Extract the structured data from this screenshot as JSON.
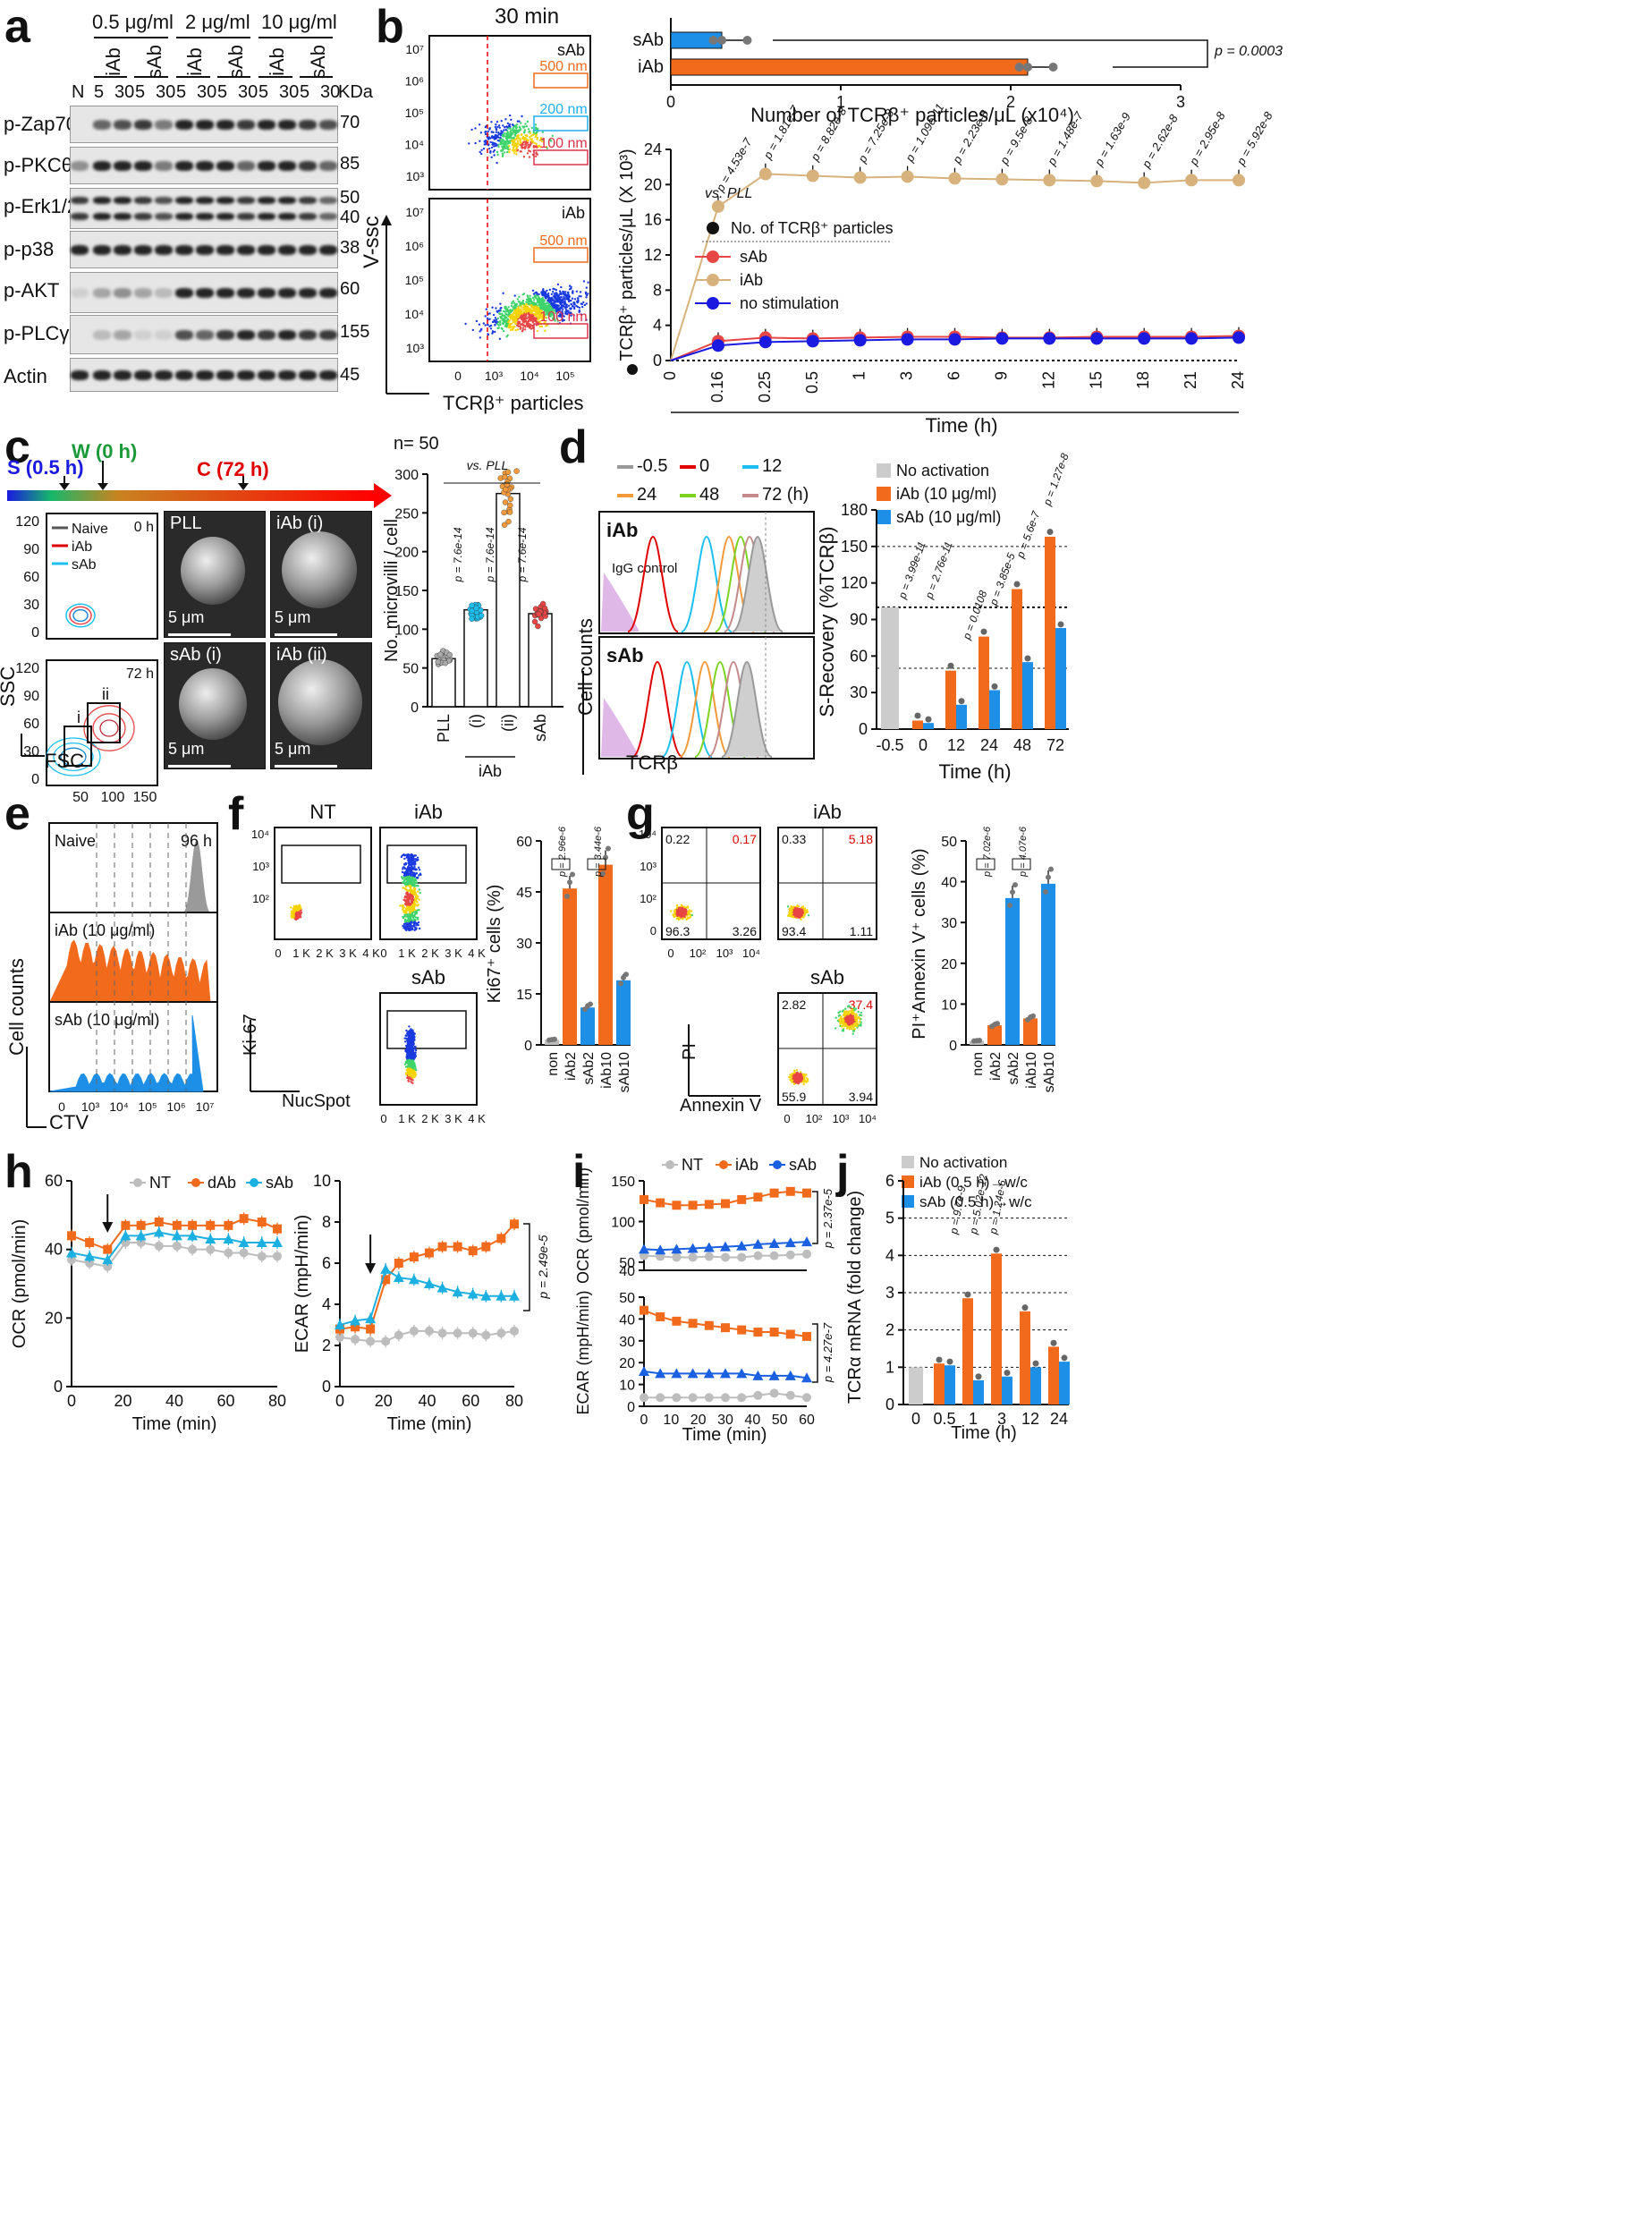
{
  "panel_labels": [
    "a",
    "b",
    "c",
    "d",
    "e",
    "f",
    "g",
    "h",
    "i",
    "j"
  ],
  "panel_a": {
    "concentrations": [
      "0.5 μg/ml",
      "2 μg/ml",
      "10 μg/ml"
    ],
    "groups": [
      "iAb",
      "sAb",
      "iAb",
      "sAb",
      "iAb",
      "sAb"
    ],
    "lane_labels": [
      "N",
      "5",
      "30",
      "5",
      "30",
      "5",
      "30",
      "5",
      "30",
      "5",
      "30",
      "5",
      "30"
    ],
    "kda_header": "KDa",
    "rows": [
      {
        "name": "p-Zap70",
        "kda": "70"
      },
      {
        "name": "p-PKCθ",
        "kda": "85"
      },
      {
        "name": "p-Erk1/2",
        "kda": "50",
        "kda2": "40"
      },
      {
        "name": "p-p38",
        "kda": "38"
      },
      {
        "name": "p-AKT",
        "kda": "60"
      },
      {
        "name": "p-PLCγ",
        "kda": "155"
      },
      {
        "name": "Actin",
        "kda": "45"
      }
    ]
  },
  "panel_b": {
    "title": "30 min",
    "plot1_label": "sAb",
    "plot2_label": "iAb",
    "gates": [
      "500 nm",
      "200 nm",
      "100 nm"
    ],
    "y_axis": "V-ssc",
    "x_axis": "TCRβ⁺ particles",
    "y_ticks": [
      "10⁷",
      "10⁶",
      "10⁵",
      "10⁴",
      "10³"
    ],
    "x_ticks": [
      "0",
      "10³",
      "10⁴",
      "10⁵"
    ],
    "bar_chart": {
      "categories": [
        "sAb",
        "iAb"
      ],
      "values": [
        0.3,
        2.1
      ],
      "xlabel": "Number of TCRβ⁺ particles/μL (x10⁴)",
      "x_ticks": [
        "0",
        "1",
        "2",
        "3"
      ],
      "pvalue": "p = 0.0003",
      "colors": [
        "#1e8fe6",
        "#f26b1d"
      ]
    },
    "line_chart": {
      "ylabel": "TCRβ⁺ particles/μL (X 10³)",
      "xlabel": "Time (h)",
      "x_ticks": [
        "0",
        "0.16",
        "0.25",
        "0.5",
        "1",
        "3",
        "6",
        "9",
        "12",
        "15",
        "18",
        "21",
        "24"
      ],
      "y_ticks": [
        "0",
        "4",
        "8",
        "12",
        "16",
        "20",
        "24"
      ],
      "vs_label": "vs. PLL",
      "legend_title": "No. of TCRβ⁺ particles",
      "legend": [
        "sAb",
        "iAb",
        "no stimulation"
      ],
      "pvalues": [
        "p = 4.53e-7",
        "p = 1.81e-7",
        "p = 8.82e-8",
        "p = 7.25e-8",
        "p = 1.09e-11",
        "p = 2.23e-8",
        "p = 9.5e-8",
        "p = 1.48e-7",
        "p = 1.63e-9",
        "p = 2.62e-8",
        "p = 2.95e-8",
        "p = 5.92e-8"
      ],
      "iab": [
        0,
        17.5,
        21.2,
        21,
        20.8,
        20.9,
        20.7,
        20.6,
        20.5,
        20.4,
        20.2,
        20.5,
        20.5
      ],
      "sab": [
        0,
        2.2,
        2.6,
        2.5,
        2.6,
        2.7,
        2.7,
        2.6,
        2.6,
        2.7,
        2.7,
        2.7,
        2.8
      ],
      "nostim": [
        0,
        1.7,
        2.1,
        2.2,
        2.3,
        2.4,
        2.4,
        2.5,
        2.5,
        2.5,
        2.5,
        2.5,
        2.6
      ]
    }
  },
  "panel_c": {
    "timeline": {
      "s": "S (0.5 h)",
      "w": "W (0 h)",
      "c": "C (72 h)"
    },
    "facs_top": {
      "legend": [
        "Naive",
        "iAb",
        "sAb"
      ],
      "time": "0 h"
    },
    "facs_bottom": {
      "time": "72 h",
      "gates": [
        "i",
        "ii"
      ]
    },
    "y_axis": "SSC",
    "x_axis": "FSC",
    "y_ticks": [
      "120",
      "90",
      "60",
      "30",
      "0"
    ],
    "x_ticks": [
      "50",
      "100",
      "150"
    ],
    "sem": [
      {
        "label": "PLL",
        "scale": "5 μm"
      },
      {
        "label": "iAb (i)",
        "scale": "5 μm"
      },
      {
        "label": "sAb (i)",
        "scale": "5 μm"
      },
      {
        "label": "iAb (ii)",
        "scale": "5 μm"
      }
    ],
    "chart": {
      "n": "n= 50",
      "vs": "vs. PLL",
      "ylabel": "No. microvilli / cell",
      "categories": [
        "PLL",
        "(i)",
        "(ii)",
        "sAb"
      ],
      "group_label": "iAb",
      "values": [
        62,
        125,
        275,
        120
      ],
      "y_ticks": [
        "0",
        "50",
        "100",
        "150",
        "200",
        "250",
        "300"
      ],
      "pvalues": [
        "p = 7.6e-14",
        "p = 7.6e-14",
        "p = 7.6e-14"
      ]
    }
  },
  "panel_d": {
    "legend_times": [
      "-0.5",
      "0",
      "12",
      "24",
      "48",
      "72 (h)"
    ],
    "legend_colors": [
      "#999999",
      "#e00000",
      "#1cc0f0",
      "#f39a3a",
      "#7ed321",
      "#c48a8a"
    ],
    "hist_labels": [
      "iAb",
      "sAb"
    ],
    "igg": "IgG control",
    "y_axis": "Cell counts",
    "x_axis": "TCRβ",
    "chart": {
      "legend": [
        "No activation",
        "iAb (10 μg/ml)",
        "sAb (10 μg/ml)"
      ],
      "ylabel": "S-Recovery (%TCRβ)",
      "xlabel": "Time (h)",
      "categories": [
        "-0.5",
        "0",
        "12",
        "24",
        "48",
        "72"
      ],
      "no_activation": [
        100,
        0,
        0,
        0,
        0,
        0
      ],
      "iab": [
        0,
        7,
        48,
        76,
        115,
        158
      ],
      "sab": [
        0,
        5,
        20,
        32,
        55,
        83
      ],
      "y_ticks": [
        "0",
        "30",
        "60",
        "90",
        "120",
        "150",
        "180"
      ],
      "pvalues": [
        "p = 3.99e-11",
        "p = 2.76e-11",
        "p = 0.0108",
        "p = 3.85e-5",
        "p = 5.6e-7",
        "p = 1.27e-8"
      ]
    }
  },
  "panel_e": {
    "labels": [
      "Naive",
      "iAb (10 μg/ml)",
      "sAb (10 μg/ml)"
    ],
    "time": "96 h",
    "y_axis": "Cell counts",
    "x_axis": "CTV",
    "x_ticks": [
      "0",
      "10³",
      "10⁴",
      "10⁵",
      "10⁶",
      "10⁷"
    ]
  },
  "panel_f": {
    "plots": [
      "NT",
      "iAb",
      "sAb"
    ],
    "y_axis": "Ki-67",
    "x_axis": "NucSpot",
    "x_ticks": [
      "0",
      "1 K",
      "2 K",
      "3 K",
      "4 K"
    ],
    "y_ticks": [
      "10⁴",
      "10³",
      "10²"
    ],
    "chart": {
      "ylabel": "Ki67⁺ cells (%)",
      "categories": [
        "non",
        "iAb2",
        "sAb2",
        "iAb10",
        "sAb10"
      ],
      "values": [
        1.5,
        46,
        11,
        53,
        19
      ],
      "y_ticks": [
        "0",
        "15",
        "30",
        "45",
        "60"
      ],
      "pvalues": [
        "p = 2.96e-6",
        "p = 3.44e-6"
      ]
    }
  },
  "panel_g": {
    "plots": [
      {
        "name": "",
        "q": [
          "0.22",
          "0.17",
          "96.3",
          "3.26"
        ]
      },
      {
        "name": "iAb",
        "q": [
          "0.33",
          "5.18",
          "93.4",
          "1.11"
        ]
      },
      {
        "name": "sAb",
        "q": [
          "2.82",
          "37.4",
          "55.9",
          "3.94"
        ]
      }
    ],
    "y_axis": "PI",
    "x_axis": "Annexin V",
    "x_ticks": [
      "0",
      "10²",
      "10³",
      "10⁴"
    ],
    "y_ticks": [
      "10⁴",
      "10³",
      "10²",
      "0"
    ],
    "chart": {
      "ylabel": "PI⁺Annexin V⁺ cells (%)",
      "categories": [
        "non",
        "iAb2",
        "sAb2",
        "iAb10",
        "sAb10"
      ],
      "values": [
        1,
        4.8,
        36,
        6.5,
        39.5
      ],
      "y_ticks": [
        "0",
        "10",
        "20",
        "30",
        "40",
        "50"
      ],
      "pvalues": [
        "p = 7.02e-6",
        "p = 4.07e-6"
      ]
    }
  },
  "panel_h": {
    "legend": [
      "NT",
      "dAb",
      "sAb"
    ],
    "ocr": {
      "ylabel": "OCR (pmol/min)",
      "xlabel": "Time (min)",
      "x": [
        0,
        7,
        14,
        21,
        27,
        34,
        41,
        47,
        54,
        61,
        67,
        74,
        80
      ],
      "nt": [
        37,
        36,
        35,
        42,
        42,
        41,
        41,
        40,
        40,
        39,
        39,
        38,
        38
      ],
      "dab": [
        44,
        42,
        40,
        47,
        47,
        48,
        47,
        47,
        47,
        47,
        49,
        48,
        46
      ],
      "sab": [
        39,
        38,
        37,
        44,
        44,
        45,
        44,
        44,
        43,
        43,
        42,
        42,
        42
      ],
      "y_ticks": [
        "0",
        "20",
        "40",
        "60"
      ],
      "x_ticks": [
        "0",
        "20",
        "40",
        "60",
        "80"
      ]
    },
    "ecar": {
      "ylabel": "ECAR (mpH/min)",
      "xlabel": "Time (min)",
      "x": [
        0,
        7,
        14,
        21,
        27,
        34,
        41,
        47,
        54,
        61,
        67,
        74,
        80
      ],
      "nt": [
        2.4,
        2.3,
        2.2,
        2.2,
        2.5,
        2.7,
        2.7,
        2.6,
        2.6,
        2.6,
        2.5,
        2.6,
        2.7
      ],
      "dab": [
        2.8,
        2.9,
        2.8,
        5.2,
        6.0,
        6.3,
        6.5,
        6.8,
        6.8,
        6.6,
        6.8,
        7.2,
        7.9
      ],
      "sab": [
        3.0,
        3.2,
        3.3,
        5.7,
        5.3,
        5.2,
        5.0,
        4.8,
        4.6,
        4.5,
        4.4,
        4.4,
        4.4
      ],
      "y_ticks": [
        "0",
        "2",
        "4",
        "6",
        "8",
        "10"
      ],
      "x_ticks": [
        "0",
        "20",
        "40",
        "60",
        "80"
      ],
      "pvalue": "p = 2.49e-5"
    }
  },
  "panel_i": {
    "legend": [
      "NT",
      "iAb",
      "sAb"
    ],
    "ocr": {
      "ylabel": "OCR (pmol/min)",
      "y_ticks": [
        "40",
        "50",
        "100",
        "150"
      ],
      "x": [
        0,
        6,
        12,
        18,
        24,
        30,
        36,
        42,
        48,
        54,
        60
      ],
      "nt": [
        58,
        57,
        56,
        56,
        57,
        56,
        56,
        58,
        58,
        59,
        60
      ],
      "iab": [
        127,
        123,
        120,
        120,
        121,
        122,
        127,
        130,
        135,
        137,
        135
      ],
      "sab": [
        66,
        65,
        66,
        67,
        68,
        69,
        70,
        72,
        73,
        74,
        75
      ],
      "pvalue": "p = 2.37e-5"
    },
    "ecar": {
      "ylabel": "ECAR (mpH/min)",
      "xlabel": "Time (min)",
      "y_ticks": [
        "0",
        "10",
        "20",
        "30",
        "40",
        "50"
      ],
      "x_ticks": [
        "0",
        "10",
        "20",
        "30",
        "40",
        "50",
        "60"
      ],
      "x": [
        0,
        6,
        12,
        18,
        24,
        30,
        36,
        42,
        48,
        54,
        60
      ],
      "nt": [
        4,
        4,
        4,
        4,
        4,
        4,
        4,
        5,
        6,
        5,
        4
      ],
      "iab": [
        44,
        41,
        39,
        38,
        37,
        36,
        35,
        34,
        34,
        33,
        32
      ],
      "sab": [
        16,
        15,
        15,
        15,
        15,
        15,
        15,
        14,
        14,
        14,
        13
      ],
      "pvalue": "p = 4.27e-7"
    }
  },
  "panel_j": {
    "legend": [
      "No activation",
      "iAb (0.5 h)→w/c",
      "sAb (0.5 h)→w/c"
    ],
    "ylabel": "TCRα mRNA (fold change)",
    "xlabel": "Time (h)",
    "categories": [
      "0",
      "0.5",
      "1",
      "3",
      "12",
      "24"
    ],
    "no_activation": [
      1,
      0,
      0,
      0,
      0,
      0
    ],
    "iab": [
      0,
      1.1,
      2.85,
      4.05,
      2.5,
      1.55
    ],
    "sab": [
      0,
      1.05,
      0.65,
      0.75,
      1.0,
      1.15
    ],
    "y_ticks": [
      "0",
      "1",
      "2",
      "3",
      "4",
      "5",
      "6"
    ],
    "pvalues": [
      "p = 9.7e-9",
      "p = 5.02e-12",
      "p = 1.24e-6"
    ]
  },
  "colors": {
    "orange": "#f26b1d",
    "blue": "#1e8fe6",
    "grey": "#bdbdbd",
    "tan": "#d8b27c",
    "red": "#e84545",
    "darkblue": "#1a1ae0"
  }
}
